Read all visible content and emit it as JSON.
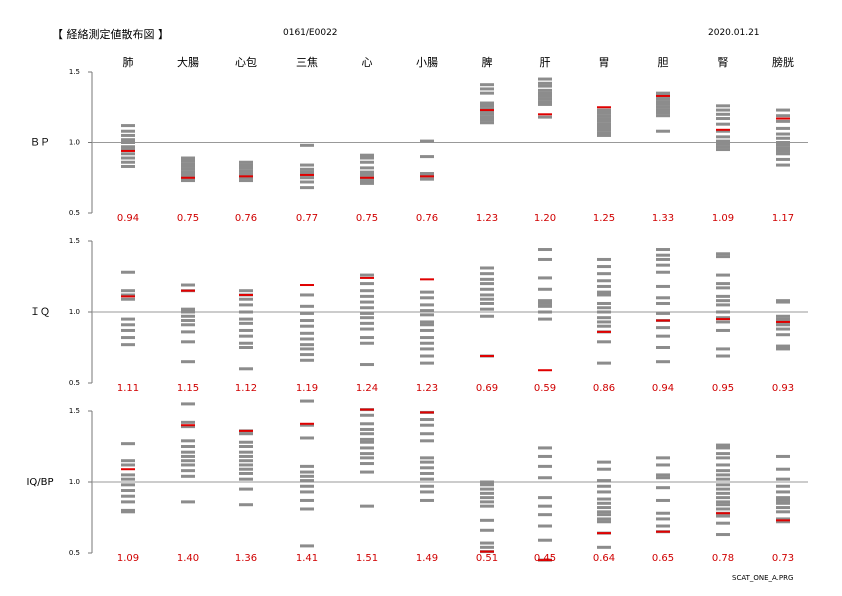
{
  "header": {
    "title": "【 経絡測定値散布図 】",
    "code": "0161/E0022",
    "date": "2020.01.21"
  },
  "footer": "SCAT_ONE_A.PRG",
  "chart_data": {
    "type": "scatter",
    "categories": [
      "肺",
      "大腸",
      "心包",
      "三焦",
      "心",
      "小腸",
      "脾",
      "肝",
      "胃",
      "胆",
      "腎",
      "膀胱"
    ],
    "panels": [
      {
        "ylabel": "ＢＰ",
        "ylim": [
          0.5,
          1.5
        ],
        "yticks": [
          "1.5",
          "1.0",
          "0.5"
        ],
        "reference": 1.0,
        "values": [
          0.94,
          0.75,
          0.76,
          0.77,
          0.75,
          0.76,
          1.23,
          1.2,
          1.25,
          1.33,
          1.09,
          1.17
        ],
        "value_labels": [
          "0.94",
          "0.75",
          "0.76",
          "0.77",
          "0.75",
          "0.76",
          "1.23",
          "1.20",
          "1.25",
          "1.33",
          "1.09",
          "1.17"
        ],
        "points": [
          [
            0.83,
            0.86,
            0.89,
            0.92,
            0.95,
            0.97,
            1.0,
            1.02,
            1.05,
            1.08,
            1.12
          ],
          [
            0.73,
            0.74,
            0.76,
            0.77,
            0.79,
            0.81,
            0.83,
            0.85,
            0.87,
            0.89
          ],
          [
            0.73,
            0.75,
            0.77,
            0.78,
            0.8,
            0.82,
            0.84,
            0.86
          ],
          [
            0.68,
            0.72,
            0.75,
            0.77,
            0.79,
            0.81,
            0.84,
            0.98
          ],
          [
            0.71,
            0.73,
            0.75,
            0.77,
            0.79,
            0.82,
            0.86,
            0.89,
            0.91
          ],
          [
            0.74,
            0.76,
            0.78,
            0.9,
            1.01
          ],
          [
            1.14,
            1.16,
            1.18,
            1.2,
            1.22,
            1.24,
            1.26,
            1.28,
            1.35,
            1.38,
            1.41
          ],
          [
            1.18,
            1.27,
            1.29,
            1.31,
            1.33,
            1.35,
            1.37,
            1.4,
            1.42,
            1.45
          ],
          [
            1.05,
            1.07,
            1.09,
            1.11,
            1.13,
            1.15,
            1.17,
            1.19,
            1.21,
            1.23
          ],
          [
            1.08,
            1.19,
            1.21,
            1.23,
            1.25,
            1.27,
            1.29,
            1.31,
            1.33,
            1.35
          ],
          [
            0.95,
            0.97,
            0.99,
            1.01,
            1.04,
            1.08,
            1.13,
            1.17,
            1.2,
            1.23,
            1.26
          ],
          [
            0.84,
            0.88,
            0.92,
            0.94,
            0.96,
            0.98,
            1.0,
            1.03,
            1.06,
            1.1,
            1.15,
            1.19,
            1.23
          ]
        ]
      },
      {
        "ylabel": "ＩＱ",
        "ylim": [
          0.5,
          1.5
        ],
        "yticks": [
          "1.5",
          "1.0",
          "0.5"
        ],
        "reference": 1.0,
        "values": [
          1.11,
          1.15,
          1.12,
          1.19,
          1.24,
          1.23,
          0.69,
          0.59,
          0.86,
          0.94,
          0.95,
          0.93
        ],
        "value_labels": [
          "1.11",
          "1.15",
          "1.12",
          "1.19",
          "1.24",
          "1.23",
          "0.69",
          "0.59",
          "0.86",
          "0.94",
          "0.95",
          "0.93"
        ],
        "points": [
          [
            0.77,
            0.82,
            0.87,
            0.91,
            0.95,
            1.09,
            1.12,
            1.15,
            1.28
          ],
          [
            0.65,
            0.79,
            0.86,
            0.91,
            0.94,
            0.97,
            1.0,
            1.02,
            1.15,
            1.19
          ],
          [
            0.6,
            0.75,
            0.78,
            0.83,
            0.87,
            0.92,
            0.95,
            1.0,
            1.05,
            1.09,
            1.12,
            1.15
          ],
          [
            0.66,
            0.7,
            0.74,
            0.77,
            0.81,
            0.85,
            0.9,
            0.94,
            0.99,
            1.04,
            1.12
          ],
          [
            0.63,
            0.78,
            0.82,
            0.88,
            0.92,
            0.96,
            0.99,
            1.03,
            1.07,
            1.11,
            1.15,
            1.2,
            1.26
          ],
          [
            0.64,
            0.69,
            0.74,
            0.78,
            0.82,
            0.87,
            0.91,
            0.93,
            0.98,
            1.01,
            1.05,
            1.1,
            1.14
          ],
          [
            0.69,
            0.97,
            1.02,
            1.06,
            1.09,
            1.12,
            1.16,
            1.2,
            1.23,
            1.27,
            1.31
          ],
          [
            0.95,
            1.0,
            1.04,
            1.06,
            1.08,
            1.16,
            1.24,
            1.37,
            1.44
          ],
          [
            0.64,
            0.79,
            0.86,
            0.9,
            0.93,
            0.96,
            1.0,
            1.03,
            1.06,
            1.12,
            1.14,
            1.18,
            1.22,
            1.27,
            1.32,
            1.37
          ],
          [
            0.65,
            0.75,
            0.83,
            0.89,
            0.94,
            0.99,
            1.06,
            1.1,
            1.18,
            1.28,
            1.33,
            1.37,
            1.4,
            1.44
          ],
          [
            0.69,
            0.74,
            0.87,
            0.93,
            0.96,
            1.0,
            1.05,
            1.08,
            1.11,
            1.17,
            1.2,
            1.26,
            1.39,
            1.41
          ],
          [
            0.74,
            0.76,
            0.84,
            0.88,
            0.91,
            0.93,
            0.95,
            0.97,
            1.07,
            1.08
          ]
        ]
      },
      {
        "ylabel": "IQ/BP",
        "ylim": [
          0.5,
          1.5
        ],
        "yticks": [
          "1.5",
          "1.0",
          "0.5"
        ],
        "reference": 1.0,
        "values": [
          1.09,
          1.4,
          1.36,
          1.41,
          1.51,
          1.49,
          0.51,
          0.45,
          0.64,
          0.65,
          0.78,
          0.73
        ],
        "value_labels": [
          "1.09",
          "1.40",
          "1.36",
          "1.41",
          "1.51",
          "1.49",
          "0.51",
          "0.45",
          "0.64",
          "0.65",
          "0.78",
          "0.73"
        ],
        "points": [
          [
            0.79,
            0.8,
            0.86,
            0.9,
            0.94,
            0.98,
            1.02,
            1.05,
            1.12,
            1.15,
            1.27
          ],
          [
            0.86,
            1.04,
            1.08,
            1.12,
            1.15,
            1.18,
            1.21,
            1.25,
            1.29,
            1.39,
            1.42,
            1.55
          ],
          [
            0.84,
            0.95,
            1.02,
            1.06,
            1.09,
            1.12,
            1.15,
            1.18,
            1.21,
            1.25,
            1.28,
            1.34,
            1.36
          ],
          [
            0.55,
            0.81,
            0.87,
            0.93,
            0.97,
            1.01,
            1.04,
            1.07,
            1.11,
            1.31,
            1.4,
            1.57
          ],
          [
            0.83,
            1.07,
            1.13,
            1.17,
            1.2,
            1.24,
            1.28,
            1.3,
            1.34,
            1.37,
            1.41,
            1.47,
            1.51
          ],
          [
            0.87,
            0.93,
            0.97,
            1.02,
            1.06,
            1.1,
            1.14,
            1.17,
            1.29,
            1.34,
            1.4,
            1.44,
            1.49
          ],
          [
            0.51,
            0.54,
            0.57,
            0.66,
            0.73,
            0.83,
            0.86,
            0.89,
            0.92,
            0.95,
            0.98,
            1.0
          ],
          [
            0.45,
            0.59,
            0.69,
            0.77,
            0.83,
            0.89,
            1.03,
            1.11,
            1.18,
            1.24
          ],
          [
            0.54,
            0.64,
            0.72,
            0.74,
            0.77,
            0.79,
            0.82,
            0.85,
            0.88,
            0.93,
            0.97,
            1.01,
            1.09,
            1.14
          ],
          [
            0.65,
            0.69,
            0.74,
            0.78,
            0.87,
            0.96,
            1.03,
            1.05,
            1.12,
            1.17
          ],
          [
            0.63,
            0.71,
            0.76,
            0.78,
            0.81,
            0.84,
            0.86,
            0.89,
            0.92,
            0.95,
            0.98,
            1.02,
            1.05,
            1.08,
            1.12,
            1.17,
            1.2,
            1.24,
            1.26
          ],
          [
            0.72,
            0.74,
            0.79,
            0.82,
            0.85,
            0.87,
            0.89,
            0.93,
            0.97,
            1.02,
            1.09,
            1.18
          ]
        ]
      }
    ]
  }
}
